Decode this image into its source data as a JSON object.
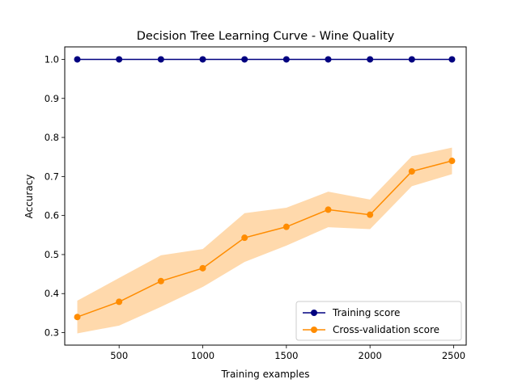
{
  "chart_data": {
    "type": "line",
    "title": "Decision Tree Learning Curve - Wine Quality",
    "xlabel": "Training examples",
    "ylabel": "Accuracy",
    "xlim": [
      175,
      2575
    ],
    "ylim": [
      0.268,
      1.032
    ],
    "xticks": [
      500,
      1000,
      1500,
      2000,
      2500
    ],
    "yticks": [
      0.3,
      0.4,
      0.5,
      0.6,
      0.7,
      0.8,
      0.9,
      1.0
    ],
    "legend_position": "lower-right",
    "grid": false,
    "x": [
      250,
      500,
      750,
      1000,
      1250,
      1500,
      1750,
      2000,
      2250,
      2490
    ],
    "series": [
      {
        "name": "Training score",
        "color": "#000080",
        "values": [
          1.0,
          1.0,
          1.0,
          1.0,
          1.0,
          1.0,
          1.0,
          1.0,
          1.0,
          1.0
        ],
        "band_lower": [
          1.0,
          1.0,
          1.0,
          1.0,
          1.0,
          1.0,
          1.0,
          1.0,
          1.0,
          1.0
        ],
        "band_upper": [
          1.0,
          1.0,
          1.0,
          1.0,
          1.0,
          1.0,
          1.0,
          1.0,
          1.0,
          1.0
        ]
      },
      {
        "name": "Cross-validation score",
        "color": "#ff8c00",
        "band_color": "#ffd29e",
        "values": [
          0.34,
          0.379,
          0.432,
          0.465,
          0.543,
          0.571,
          0.615,
          0.602,
          0.713,
          0.74
        ],
        "band_lower": [
          0.298,
          0.318,
          0.366,
          0.417,
          0.481,
          0.523,
          0.57,
          0.565,
          0.675,
          0.706
        ],
        "band_upper": [
          0.382,
          0.44,
          0.498,
          0.514,
          0.606,
          0.62,
          0.661,
          0.641,
          0.752,
          0.774
        ]
      }
    ]
  }
}
